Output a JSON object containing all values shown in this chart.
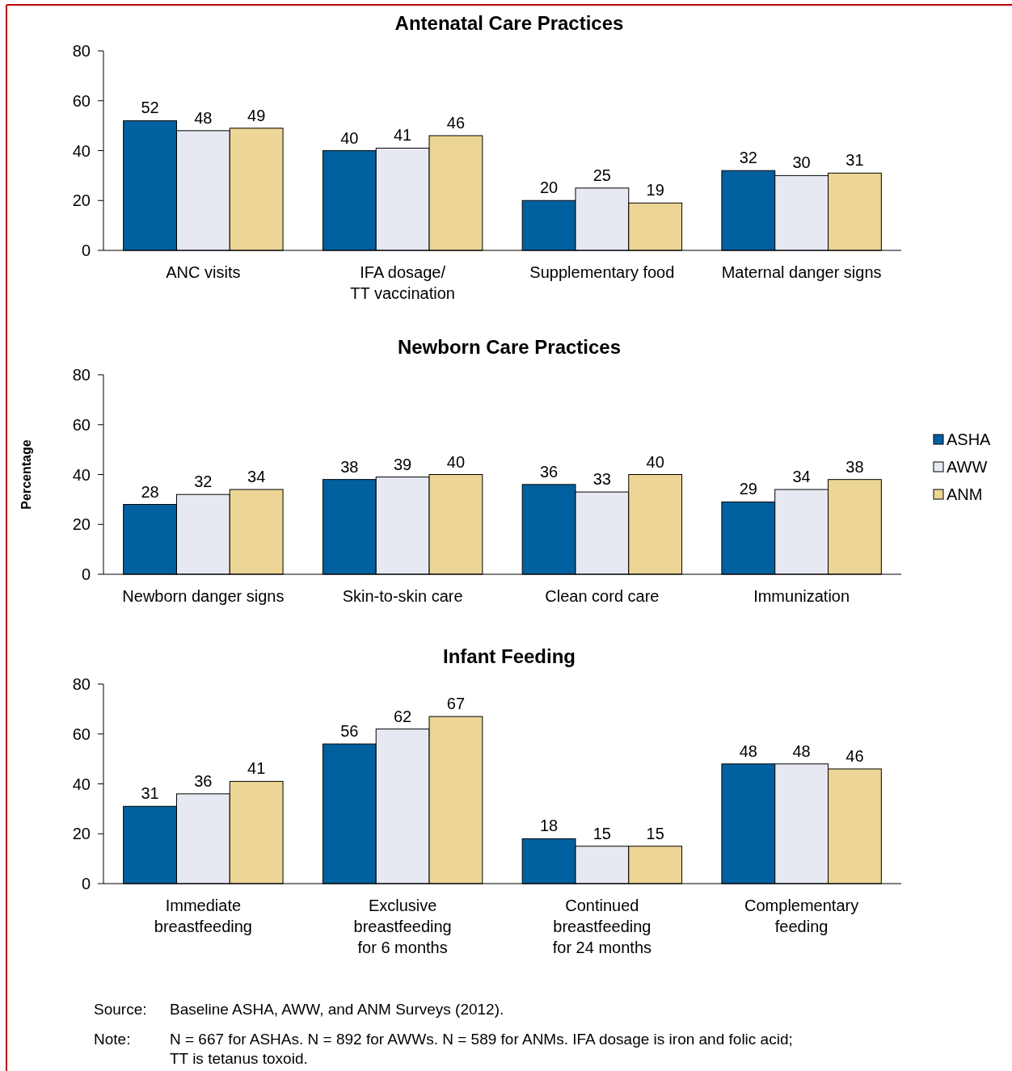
{
  "chart_data": [
    {
      "type": "bar",
      "title": "Antenatal Care Practices",
      "categories": [
        "ANC visits",
        "IFA dosage/\nTT vaccination",
        "Supplementary food",
        "Maternal danger signs"
      ],
      "series": [
        {
          "color": "#0060a0",
          "values": [
            52,
            40,
            20,
            32
          ]
        },
        {
          "color": "#e6e9f2",
          "values": [
            48,
            41,
            25,
            30
          ]
        },
        {
          "color": "#ecd595",
          "values": [
            49,
            46,
            19,
            31
          ]
        }
      ],
      "ylim": [
        0,
        80
      ],
      "yticks": [
        0,
        20,
        40,
        60,
        80
      ],
      "data_labels": true,
      "grid": false,
      "legend": false
    },
    {
      "type": "bar",
      "title": "Newborn Care Practices",
      "ylabel": "Percentage",
      "categories": [
        "Newborn danger signs",
        "Skin-to-skin care",
        "Clean cord care",
        "Immunization"
      ],
      "series": [
        {
          "name": "ASHA",
          "color": "#0060a0",
          "values": [
            28,
            38,
            36,
            29
          ]
        },
        {
          "name": "AWW",
          "color": "#e6e9f2",
          "values": [
            32,
            39,
            33,
            34
          ]
        },
        {
          "name": "ANM",
          "color": "#ecd595",
          "values": [
            34,
            40,
            40,
            38
          ]
        }
      ],
      "ylim": [
        0,
        80
      ],
      "yticks": [
        0,
        20,
        40,
        60,
        80
      ],
      "data_labels": true,
      "grid": false,
      "legend": "right"
    },
    {
      "type": "bar",
      "title": "Infant Feeding",
      "categories": [
        "Immediate\nbreastfeeding",
        "Exclusive\nbreastfeeding\nfor 6 months",
        "Continued\nbreastfeeding\nfor 24 months",
        "Complementary\nfeeding"
      ],
      "series": [
        {
          "color": "#0060a0",
          "values": [
            31,
            56,
            18,
            48
          ]
        },
        {
          "color": "#e6e9f2",
          "values": [
            36,
            62,
            15,
            48
          ]
        },
        {
          "color": "#ecd595",
          "values": [
            41,
            67,
            15,
            46
          ]
        }
      ],
      "ylim": [
        0,
        80
      ],
      "yticks": [
        0,
        20,
        40,
        60,
        80
      ],
      "data_labels": true,
      "grid": false,
      "legend": false,
      "annotations": [
        "Source: Baseline ASHA, AWW, and ANM Surveys (2012).",
        "Note: N = 667 for ASHAs. N = 892 for AWWs. N = 589 for ANMs. IFA dosage is iron and folic acid; TT is tetanus toxoid."
      ]
    }
  ]
}
